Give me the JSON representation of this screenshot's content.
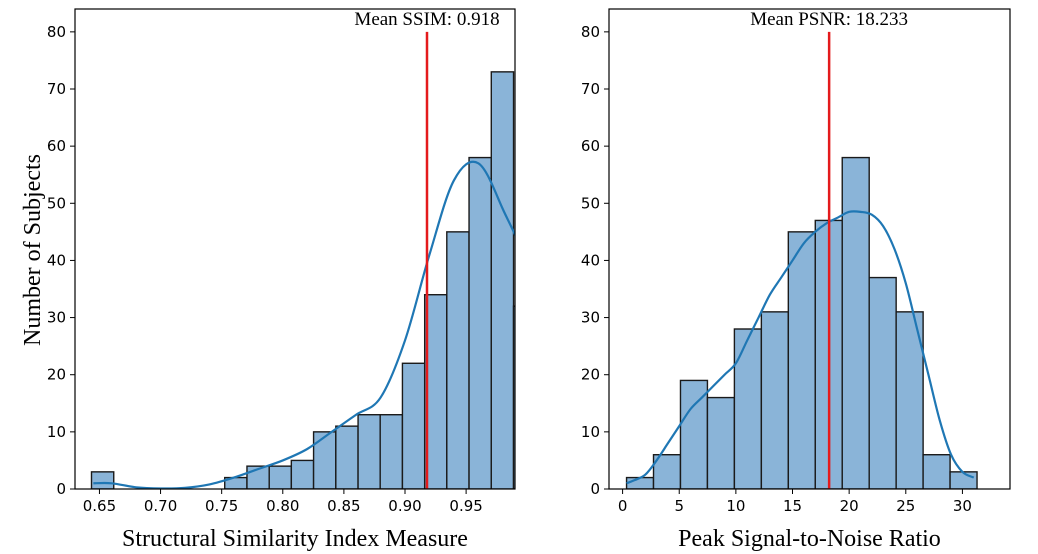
{
  "figure": {
    "ylabel": "Number of Subjects"
  },
  "chart_data": [
    {
      "type": "bar",
      "subtype": "histogram",
      "xlabel": "Structural Similarity Index Measure",
      "ylabel": "Number of Subjects",
      "xlim": [
        0.63,
        0.99
      ],
      "ylim": [
        0,
        84
      ],
      "xticks": [
        "0.65",
        "0.70",
        "0.75",
        "0.80",
        "0.85",
        "0.90",
        "0.95"
      ],
      "yticks": [
        "0",
        "10",
        "20",
        "30",
        "40",
        "50",
        "60",
        "70",
        "80"
      ],
      "bins": [
        [
          0.6435,
          0.6617,
          3
        ],
        [
          0.6617,
          0.6798,
          0
        ],
        [
          0.6798,
          0.698,
          0
        ],
        [
          0.698,
          0.7162,
          0
        ],
        [
          0.7162,
          0.7344,
          0
        ],
        [
          0.7344,
          0.7525,
          0
        ],
        [
          0.7525,
          0.7707,
          2
        ],
        [
          0.7707,
          0.7889,
          4
        ],
        [
          0.7889,
          0.807,
          4
        ],
        [
          0.807,
          0.8252,
          5
        ],
        [
          0.8252,
          0.8434,
          10
        ],
        [
          0.8434,
          0.8616,
          11
        ],
        [
          0.8616,
          0.8797,
          13
        ],
        [
          0.8797,
          0.8979,
          13
        ],
        [
          0.8979,
          0.9161,
          22
        ],
        [
          0.9161,
          0.9342,
          34
        ],
        [
          0.9342,
          0.9524,
          45
        ],
        [
          0.9524,
          0.9706,
          58
        ],
        [
          0.9706,
          0.9888,
          73
        ],
        [
          0.9888,
          1.007,
          32
        ]
      ],
      "kde": [
        [
          0.645,
          1
        ],
        [
          0.66,
          1
        ],
        [
          0.68,
          0.3
        ],
        [
          0.7,
          0.1
        ],
        [
          0.72,
          0.2
        ],
        [
          0.74,
          0.8
        ],
        [
          0.76,
          2
        ],
        [
          0.78,
          3.5
        ],
        [
          0.8,
          5
        ],
        [
          0.82,
          7
        ],
        [
          0.84,
          10
        ],
        [
          0.86,
          13
        ],
        [
          0.88,
          16
        ],
        [
          0.9,
          26
        ],
        [
          0.92,
          41
        ],
        [
          0.94,
          54
        ],
        [
          0.96,
          57
        ],
        [
          0.98,
          49
        ],
        [
          1.0,
          38
        ],
        [
          1.005,
          21
        ]
      ],
      "mean_line": {
        "value": 0.918,
        "label": "Mean SSIM: 0.918"
      },
      "colors": {
        "bar_fill": "#8ab4d8",
        "bar_edge": "#1a1a1a",
        "kde": "#1f77b4",
        "mean": "#e41a1c"
      }
    },
    {
      "type": "bar",
      "subtype": "histogram",
      "xlabel": "Peak Signal-to-Noise Ratio",
      "ylabel": "",
      "xlim": [
        -1.2,
        34.2
      ],
      "ylim": [
        0,
        84
      ],
      "xticks": [
        "0",
        "5",
        "10",
        "15",
        "20",
        "25",
        "30"
      ],
      "yticks": [
        "0",
        "10",
        "20",
        "30",
        "40",
        "50",
        "60",
        "70",
        "80"
      ],
      "bins": [
        [
          0.35,
          2.73,
          2
        ],
        [
          2.73,
          5.11,
          6
        ],
        [
          5.11,
          7.49,
          19
        ],
        [
          7.49,
          9.87,
          16
        ],
        [
          9.87,
          12.25,
          28
        ],
        [
          12.25,
          14.63,
          31
        ],
        [
          14.63,
          17.01,
          45
        ],
        [
          17.01,
          19.39,
          47
        ],
        [
          19.39,
          21.77,
          58
        ],
        [
          21.77,
          24.15,
          37
        ],
        [
          24.15,
          26.53,
          31
        ],
        [
          26.53,
          28.91,
          6
        ],
        [
          28.91,
          31.29,
          3
        ]
      ],
      "kde": [
        [
          0.35,
          1
        ],
        [
          1,
          1.5
        ],
        [
          2,
          2.5
        ],
        [
          3,
          5
        ],
        [
          4,
          8
        ],
        [
          5,
          11
        ],
        [
          6,
          14
        ],
        [
          7,
          16
        ],
        [
          8,
          18
        ],
        [
          9,
          20
        ],
        [
          10,
          22
        ],
        [
          11,
          26
        ],
        [
          12,
          30
        ],
        [
          13,
          34
        ],
        [
          14,
          37
        ],
        [
          15,
          40
        ],
        [
          16,
          43
        ],
        [
          17,
          45
        ],
        [
          18,
          46.5
        ],
        [
          19,
          47.5
        ],
        [
          20,
          48.5
        ],
        [
          21,
          48.5
        ],
        [
          22,
          48
        ],
        [
          23,
          46
        ],
        [
          24,
          42
        ],
        [
          25,
          36
        ],
        [
          26,
          28
        ],
        [
          27,
          20
        ],
        [
          28,
          12
        ],
        [
          29,
          6
        ],
        [
          30,
          3
        ],
        [
          31,
          2
        ]
      ],
      "mean_line": {
        "value": 18.233,
        "label": "Mean PSNR: 18.233"
      },
      "colors": {
        "bar_fill": "#8ab4d8",
        "bar_edge": "#1a1a1a",
        "kde": "#1f77b4",
        "mean": "#e41a1c"
      }
    }
  ]
}
